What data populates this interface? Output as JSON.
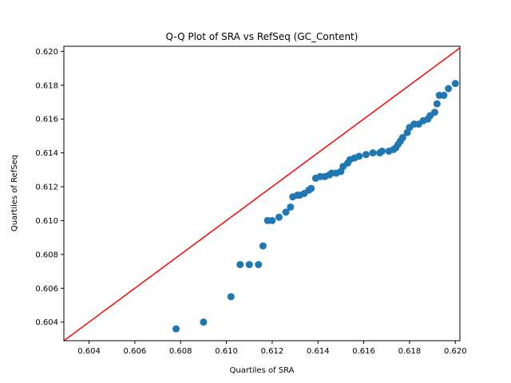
{
  "chart_data": {
    "type": "scatter",
    "title": "Q-Q Plot of SRA vs RefSeq (GC_Content)",
    "xlabel": "Quartiles of SRA",
    "ylabel": "Quartiles of RefSeq",
    "xlim": [
      0.6029,
      0.6202
    ],
    "ylim": [
      0.6029,
      0.6203
    ],
    "xticks": [
      "0.604",
      "0.606",
      "0.608",
      "0.610",
      "0.612",
      "0.614",
      "0.616",
      "0.618",
      "0.620"
    ],
    "yticks": [
      "0.604",
      "0.606",
      "0.608",
      "0.610",
      "0.612",
      "0.614",
      "0.616",
      "0.618",
      "0.620"
    ],
    "grid": false,
    "reference_line": {
      "color": "#ff0000",
      "from": [
        0.6029,
        0.6029
      ],
      "to": [
        0.6202,
        0.6202
      ]
    },
    "marker_color": "#1f77b4",
    "points": [
      [
        0.6078,
        0.6036
      ],
      [
        0.609,
        0.604
      ],
      [
        0.6102,
        0.6055
      ],
      [
        0.6106,
        0.6074
      ],
      [
        0.611,
        0.6074
      ],
      [
        0.6114,
        0.6074
      ],
      [
        0.6116,
        0.6085
      ],
      [
        0.6118,
        0.61
      ],
      [
        0.612,
        0.61
      ],
      [
        0.6123,
        0.6102
      ],
      [
        0.6126,
        0.6105
      ],
      [
        0.6128,
        0.6108
      ],
      [
        0.6129,
        0.6114
      ],
      [
        0.6131,
        0.6115
      ],
      [
        0.6132,
        0.6115
      ],
      [
        0.6134,
        0.6116
      ],
      [
        0.6136,
        0.6118
      ],
      [
        0.6137,
        0.6119
      ],
      [
        0.6139,
        0.6125
      ],
      [
        0.6141,
        0.6126
      ],
      [
        0.6143,
        0.6126
      ],
      [
        0.6145,
        0.6127
      ],
      [
        0.6146,
        0.6128
      ],
      [
        0.6148,
        0.6128
      ],
      [
        0.615,
        0.6129
      ],
      [
        0.6151,
        0.6132
      ],
      [
        0.6153,
        0.6134
      ],
      [
        0.6154,
        0.6136
      ],
      [
        0.6156,
        0.6137
      ],
      [
        0.6158,
        0.6138
      ],
      [
        0.6161,
        0.6139
      ],
      [
        0.6164,
        0.614
      ],
      [
        0.6167,
        0.614
      ],
      [
        0.6168,
        0.6141
      ],
      [
        0.6171,
        0.6141
      ],
      [
        0.6173,
        0.6142
      ],
      [
        0.6174,
        0.6143
      ],
      [
        0.6175,
        0.6145
      ],
      [
        0.6176,
        0.6147
      ],
      [
        0.6177,
        0.6149
      ],
      [
        0.6179,
        0.6152
      ],
      [
        0.618,
        0.6155
      ],
      [
        0.6182,
        0.6157
      ],
      [
        0.6184,
        0.6157
      ],
      [
        0.6186,
        0.6159
      ],
      [
        0.6188,
        0.616
      ],
      [
        0.6189,
        0.6162
      ],
      [
        0.6191,
        0.6164
      ],
      [
        0.6192,
        0.6169
      ],
      [
        0.6193,
        0.6174
      ],
      [
        0.6195,
        0.6174
      ],
      [
        0.6197,
        0.6178
      ],
      [
        0.62,
        0.6181
      ]
    ]
  }
}
